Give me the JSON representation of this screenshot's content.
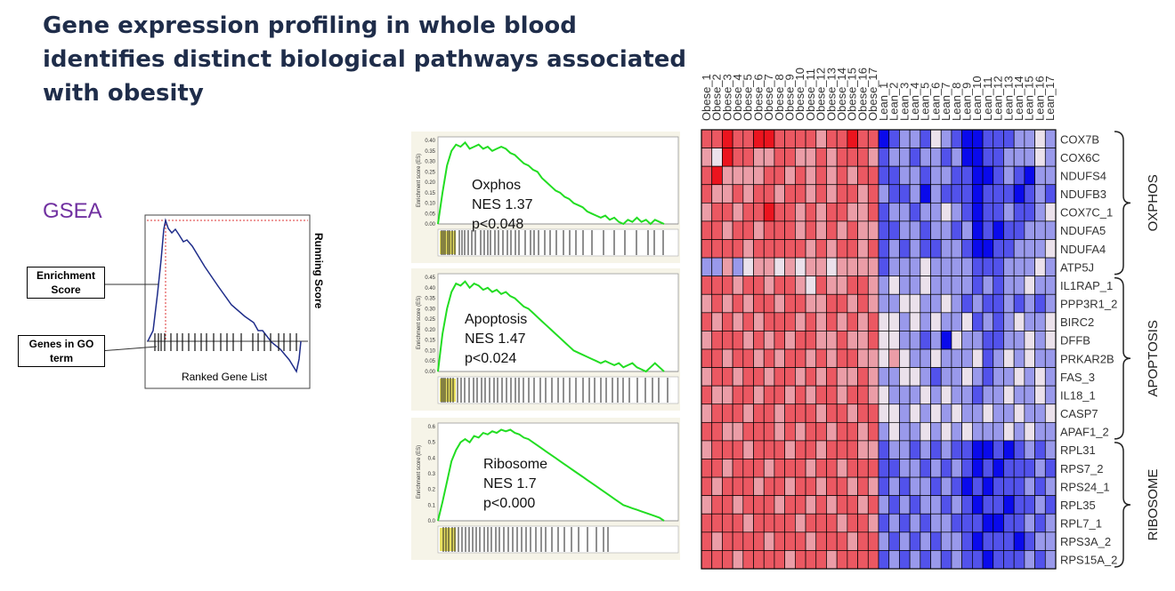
{
  "slide": {
    "title_line1": "Gene expression profiling in whole blood",
    "title_line2": "identifies distinct biological pathways associated",
    "title_line3": "with obesity",
    "gsea_label": "GSEA"
  },
  "schematic": {
    "enrichment_label": "Enrichment Score",
    "genes_label": "Genes in GO term",
    "xlabel": "Ranked Gene List",
    "ylabel": "Running Score"
  },
  "colors": {
    "title": "#1f2d4a",
    "gsea": "#7030a0",
    "curve_schematic": "#1f2d8a",
    "curve_panel": "#22dd22",
    "hit_band": "#e8e060",
    "high": "#e0001a",
    "low": "#1a00e0"
  },
  "chart_data": [
    {
      "type": "line",
      "ylabel": "Enrichment score (ES)",
      "name": "Oxphos",
      "nes_text": "NES 1.37",
      "p_text": "p<0.048",
      "yticks": [
        "0.40",
        "0.35",
        "0.30",
        "0.25",
        "0.20",
        "0.15",
        "0.10",
        "0.05",
        "0.00"
      ],
      "ylim": [
        0,
        0.4
      ],
      "x": [
        0,
        2,
        4,
        6,
        8,
        10,
        12,
        14,
        16,
        18,
        20,
        22,
        24,
        26,
        28,
        30,
        32,
        34,
        36,
        38,
        40,
        42,
        44,
        46,
        48,
        50,
        52,
        54,
        56,
        58,
        60,
        62,
        64,
        66,
        68,
        70,
        72,
        74,
        76,
        78,
        80,
        82,
        84,
        86,
        88,
        90,
        92,
        94,
        96,
        98,
        100
      ],
      "y": [
        0,
        0.15,
        0.28,
        0.35,
        0.38,
        0.37,
        0.39,
        0.36,
        0.37,
        0.38,
        0.36,
        0.37,
        0.35,
        0.36,
        0.37,
        0.36,
        0.34,
        0.33,
        0.31,
        0.29,
        0.28,
        0.26,
        0.25,
        0.22,
        0.2,
        0.18,
        0.16,
        0.15,
        0.13,
        0.12,
        0.1,
        0.09,
        0.08,
        0.06,
        0.05,
        0.04,
        0.03,
        0.04,
        0.02,
        0.03,
        0.01,
        0.0,
        0.02,
        0.01,
        0.03,
        0.01,
        0.02,
        0.0,
        0.02,
        0.01,
        0.0
      ]
    },
    {
      "type": "line",
      "ylabel": "Enrichment score (ES)",
      "name": "Apoptosis",
      "nes_text": "NES 1.47",
      "p_text": "p<0.024",
      "yticks": [
        "0.45",
        "0.40",
        "0.35",
        "0.30",
        "0.25",
        "0.20",
        "0.15",
        "0.10",
        "0.05",
        "0.00"
      ],
      "ylim": [
        0,
        0.45
      ],
      "x": [
        0,
        2,
        4,
        6,
        8,
        10,
        12,
        14,
        16,
        18,
        20,
        22,
        24,
        26,
        28,
        30,
        32,
        34,
        36,
        38,
        40,
        42,
        44,
        46,
        48,
        50,
        52,
        54,
        56,
        58,
        60,
        62,
        64,
        66,
        68,
        70,
        72,
        74,
        76,
        78,
        80,
        82,
        84,
        86,
        88,
        90,
        92,
        94,
        96,
        98,
        100
      ],
      "y": [
        0,
        0.18,
        0.3,
        0.38,
        0.42,
        0.41,
        0.43,
        0.4,
        0.42,
        0.41,
        0.39,
        0.4,
        0.38,
        0.39,
        0.37,
        0.38,
        0.36,
        0.35,
        0.33,
        0.31,
        0.3,
        0.28,
        0.26,
        0.24,
        0.22,
        0.2,
        0.18,
        0.16,
        0.14,
        0.12,
        0.1,
        0.09,
        0.08,
        0.07,
        0.06,
        0.05,
        0.04,
        0.05,
        0.04,
        0.03,
        0.04,
        0.02,
        0.03,
        0.04,
        0.02,
        0.01,
        0.0,
        0.02,
        0.04,
        0.02,
        0.0
      ]
    },
    {
      "type": "line",
      "ylabel": "Enrichment score (ES)",
      "name": "Ribosome",
      "nes_text": "NES 1.7",
      "p_text": "p<0.000",
      "yticks": [
        "0.6",
        "0.5",
        "0.4",
        "0.3",
        "0.2",
        "0.1",
        "0.0"
      ],
      "ylim": [
        0,
        0.6
      ],
      "x": [
        0,
        2,
        4,
        6,
        8,
        10,
        12,
        14,
        16,
        18,
        20,
        22,
        24,
        26,
        28,
        30,
        32,
        34,
        36,
        38,
        40,
        42,
        44,
        46,
        48,
        50,
        52,
        54,
        56,
        58,
        60,
        62,
        64,
        66,
        68,
        70,
        72,
        74,
        76,
        78,
        80,
        82,
        84,
        86,
        88,
        90,
        92,
        94,
        96,
        98,
        100
      ],
      "y": [
        0,
        0.12,
        0.25,
        0.38,
        0.45,
        0.5,
        0.52,
        0.5,
        0.54,
        0.53,
        0.56,
        0.55,
        0.57,
        0.56,
        0.58,
        0.57,
        0.58,
        0.56,
        0.55,
        0.53,
        0.52,
        0.5,
        0.48,
        0.46,
        0.44,
        0.42,
        0.4,
        0.38,
        0.36,
        0.34,
        0.32,
        0.3,
        0.28,
        0.26,
        0.24,
        0.22,
        0.2,
        0.18,
        0.16,
        0.14,
        0.12,
        0.1,
        0.09,
        0.08,
        0.07,
        0.06,
        0.05,
        0.04,
        0.03,
        0.02,
        0.0
      ]
    },
    {
      "type": "heatmap",
      "columns": [
        "Obese_1",
        "Obese_2",
        "Obese_3",
        "Obese_4",
        "Obese_5",
        "Obese_6",
        "Obese_7",
        "Obese_8",
        "Obese_9",
        "Obese_10",
        "Obese_11",
        "Obese_12",
        "Obese_13",
        "Obese_14",
        "Obese_15",
        "Obese_16",
        "Obese_17",
        "Lean_1",
        "Lean_2",
        "Lean_3",
        "Lean_4",
        "Lean_5",
        "Lean_6",
        "Lean_7",
        "Lean_8",
        "Lean_9",
        "Lean_10",
        "Lean_11",
        "Lean_12",
        "Lean_13",
        "Lean_14",
        "Lean_15",
        "Lean_16",
        "Lean_17"
      ],
      "rows": [
        "COX7B",
        "COX6C",
        "NDUFS4",
        "NDUFB3",
        "COX7C_1",
        "NDUFA5",
        "NDUFA4",
        "ATP5J",
        "IL1RAP_1",
        "PPP3R1_2",
        "BIRC2",
        "DFFB",
        "PRKAR2B",
        "FAS_3",
        "IL18_1",
        "CASP7",
        "APAF1_2",
        "RPL31",
        "RPS7_2",
        "RPS24_1",
        "RPL35",
        "RPL7_1",
        "RPS3A_2",
        "RPS15A_2"
      ],
      "groups": [
        {
          "label": "OXPHOS",
          "start": 0,
          "end": 7
        },
        {
          "label": "APOPTOSIS",
          "start": 8,
          "end": 16
        },
        {
          "label": "RIBOSOME",
          "start": 17,
          "end": 23
        }
      ],
      "values": [
        [
          2,
          2,
          3,
          2,
          2,
          3,
          3,
          2,
          2,
          2,
          2,
          1,
          2,
          2,
          3,
          2,
          2,
          -3,
          -2,
          -1,
          -1,
          -2,
          0,
          -1,
          -2,
          -3,
          -3,
          -2,
          -2,
          -2,
          -1,
          -1,
          0,
          -1
        ],
        [
          1,
          0,
          3,
          2,
          2,
          1,
          1,
          2,
          2,
          1,
          1,
          2,
          1,
          2,
          2,
          2,
          1,
          -2,
          -1,
          -1,
          -2,
          -1,
          -1,
          -2,
          -1,
          -3,
          -3,
          -2,
          -2,
          -1,
          -1,
          -1,
          0,
          -1
        ],
        [
          2,
          3,
          1,
          1,
          1,
          1,
          2,
          2,
          1,
          2,
          1,
          2,
          1,
          2,
          1,
          2,
          2,
          -2,
          -2,
          -1,
          -1,
          -2,
          -1,
          -1,
          -2,
          -2,
          -3,
          -3,
          -2,
          -1,
          -2,
          -3,
          -1,
          -1
        ],
        [
          2,
          1,
          1,
          2,
          1,
          2,
          2,
          1,
          2,
          2,
          1,
          2,
          1,
          2,
          2,
          1,
          2,
          -1,
          -2,
          -2,
          -1,
          -3,
          -1,
          -2,
          -2,
          -2,
          -3,
          -2,
          -2,
          -2,
          -3,
          -2,
          -1,
          -2
        ],
        [
          1,
          2,
          2,
          1,
          2,
          2,
          3,
          2,
          2,
          1,
          2,
          1,
          2,
          2,
          1,
          1,
          2,
          -2,
          -1,
          -1,
          -2,
          -1,
          -1,
          0,
          -1,
          -2,
          -3,
          -2,
          -2,
          -1,
          -2,
          -2,
          -1,
          0
        ],
        [
          2,
          2,
          1,
          2,
          2,
          1,
          2,
          2,
          2,
          1,
          2,
          1,
          2,
          1,
          2,
          1,
          1,
          -2,
          -2,
          -1,
          -1,
          -2,
          -1,
          -1,
          -2,
          -1,
          -3,
          -2,
          -3,
          -2,
          -2,
          -1,
          -1,
          -1
        ],
        [
          2,
          2,
          2,
          2,
          1,
          2,
          2,
          2,
          2,
          2,
          1,
          2,
          1,
          2,
          2,
          1,
          2,
          -2,
          -1,
          -2,
          -1,
          -2,
          -2,
          -1,
          -1,
          -2,
          -3,
          -3,
          -2,
          -2,
          -1,
          -1,
          -1,
          0
        ],
        [
          -1,
          -1,
          1,
          -1,
          0,
          1,
          1,
          0,
          1,
          0,
          1,
          1,
          0,
          1,
          1,
          1,
          1,
          -2,
          -1,
          -1,
          -1,
          0,
          -1,
          -1,
          -1,
          -1,
          -2,
          -2,
          -2,
          -1,
          -1,
          -1,
          0,
          -1
        ],
        [
          2,
          2,
          2,
          1,
          2,
          2,
          1,
          2,
          2,
          1,
          0,
          2,
          1,
          1,
          2,
          2,
          1,
          -1,
          0,
          -1,
          -1,
          0,
          -1,
          -1,
          -1,
          -1,
          -2,
          -1,
          -2,
          -1,
          -1,
          0,
          -1,
          -1
        ],
        [
          1,
          2,
          1,
          2,
          1,
          2,
          2,
          1,
          2,
          2,
          1,
          1,
          2,
          2,
          1,
          2,
          1,
          -1,
          -1,
          0,
          0,
          -1,
          -1,
          0,
          -1,
          -2,
          -1,
          -2,
          -2,
          -1,
          -2,
          -1,
          -2,
          -1
        ],
        [
          2,
          1,
          2,
          1,
          2,
          1,
          2,
          2,
          2,
          1,
          2,
          1,
          2,
          1,
          2,
          1,
          2,
          0,
          0,
          -1,
          0,
          -1,
          0,
          -1,
          -1,
          0,
          -2,
          -1,
          -2,
          -1,
          0,
          -1,
          -1,
          0
        ],
        [
          1,
          2,
          2,
          2,
          1,
          2,
          1,
          2,
          1,
          2,
          2,
          1,
          1,
          2,
          1,
          1,
          2,
          0,
          0,
          -1,
          -1,
          -2,
          -1,
          -3,
          0,
          -1,
          -1,
          -2,
          -2,
          -1,
          -1,
          0,
          -1,
          0
        ],
        [
          2,
          2,
          1,
          2,
          2,
          1,
          2,
          1,
          2,
          2,
          1,
          2,
          1,
          2,
          2,
          1,
          1,
          0,
          1,
          0,
          -1,
          -1,
          0,
          -1,
          -1,
          -1,
          0,
          -2,
          -1,
          0,
          -1,
          0,
          -1,
          -1
        ],
        [
          1,
          2,
          2,
          1,
          2,
          2,
          1,
          2,
          2,
          1,
          2,
          1,
          2,
          1,
          1,
          2,
          1,
          -1,
          -1,
          0,
          0,
          -1,
          -2,
          -1,
          -1,
          0,
          -1,
          -2,
          -1,
          -1,
          0,
          -1,
          0,
          -1
        ],
        [
          2,
          1,
          1,
          2,
          2,
          1,
          2,
          2,
          1,
          2,
          1,
          2,
          2,
          1,
          2,
          2,
          1,
          0,
          -1,
          -1,
          -1,
          0,
          -1,
          0,
          -1,
          -1,
          -2,
          -1,
          -1,
          0,
          -1,
          -1,
          0,
          -1
        ],
        [
          1,
          2,
          2,
          2,
          1,
          2,
          2,
          1,
          2,
          2,
          2,
          1,
          2,
          2,
          1,
          2,
          2,
          0,
          0,
          -1,
          0,
          -1,
          0,
          -1,
          0,
          -1,
          -1,
          0,
          -1,
          -1,
          0,
          -1,
          -1,
          0
        ],
        [
          2,
          2,
          1,
          1,
          2,
          2,
          2,
          1,
          2,
          1,
          2,
          2,
          1,
          2,
          2,
          1,
          2,
          -1,
          0,
          -1,
          -1,
          0,
          -1,
          0,
          -1,
          0,
          -1,
          -1,
          -1,
          0,
          -1,
          0,
          -1,
          -1
        ],
        [
          1,
          2,
          2,
          2,
          1,
          2,
          2,
          2,
          1,
          2,
          2,
          1,
          2,
          2,
          2,
          1,
          1,
          -2,
          -1,
          -1,
          -2,
          -1,
          -2,
          -1,
          -2,
          -2,
          -3,
          -3,
          -2,
          -3,
          -2,
          -1,
          -2,
          -1
        ],
        [
          2,
          2,
          1,
          2,
          2,
          2,
          1,
          2,
          2,
          2,
          1,
          2,
          2,
          1,
          2,
          2,
          2,
          -2,
          -2,
          -1,
          -1,
          -2,
          -1,
          -2,
          -1,
          -2,
          -3,
          -2,
          -3,
          -2,
          -2,
          -2,
          -1,
          -2
        ],
        [
          2,
          1,
          2,
          2,
          2,
          1,
          2,
          2,
          1,
          2,
          2,
          1,
          2,
          2,
          1,
          2,
          1,
          -2,
          -1,
          -2,
          -1,
          -1,
          -2,
          -1,
          -2,
          -3,
          -2,
          -3,
          -2,
          -2,
          -2,
          -1,
          -2,
          -1
        ],
        [
          1,
          2,
          2,
          1,
          2,
          2,
          2,
          1,
          2,
          2,
          1,
          2,
          1,
          2,
          2,
          1,
          2,
          -1,
          -2,
          -1,
          -2,
          -1,
          -1,
          -2,
          -1,
          -2,
          -3,
          -2,
          -2,
          -3,
          -2,
          -2,
          -1,
          -2
        ],
        [
          2,
          2,
          2,
          2,
          1,
          2,
          2,
          2,
          2,
          1,
          2,
          2,
          2,
          1,
          2,
          2,
          1,
          -2,
          -1,
          -2,
          -1,
          -2,
          -1,
          -1,
          -2,
          -2,
          -2,
          -3,
          -3,
          -2,
          -2,
          -1,
          -2,
          -1
        ],
        [
          2,
          1,
          2,
          2,
          2,
          2,
          1,
          2,
          2,
          2,
          1,
          2,
          2,
          2,
          1,
          2,
          2,
          -1,
          -2,
          -1,
          -2,
          -1,
          -2,
          -1,
          -1,
          -2,
          -3,
          -2,
          -2,
          -2,
          -3,
          -2,
          -1,
          -1
        ],
        [
          2,
          2,
          2,
          1,
          2,
          2,
          2,
          2,
          1,
          2,
          2,
          2,
          1,
          2,
          2,
          2,
          2,
          -2,
          -1,
          -2,
          -1,
          -2,
          -1,
          -2,
          -1,
          -2,
          -2,
          -3,
          -2,
          -2,
          -2,
          -1,
          -2,
          -1
        ]
      ]
    }
  ]
}
